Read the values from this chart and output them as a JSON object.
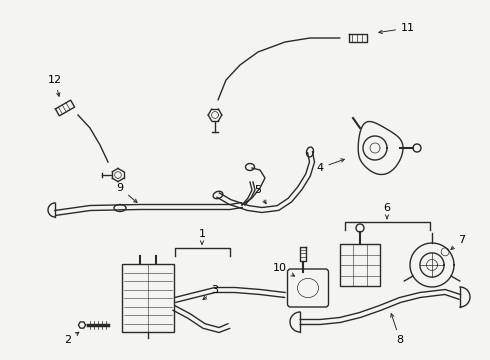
{
  "bg_color": "#f5f5f0",
  "line_color": "#2a2a2a",
  "label_color": "#000000",
  "fig_width": 4.9,
  "fig_height": 3.6,
  "dpi": 100
}
